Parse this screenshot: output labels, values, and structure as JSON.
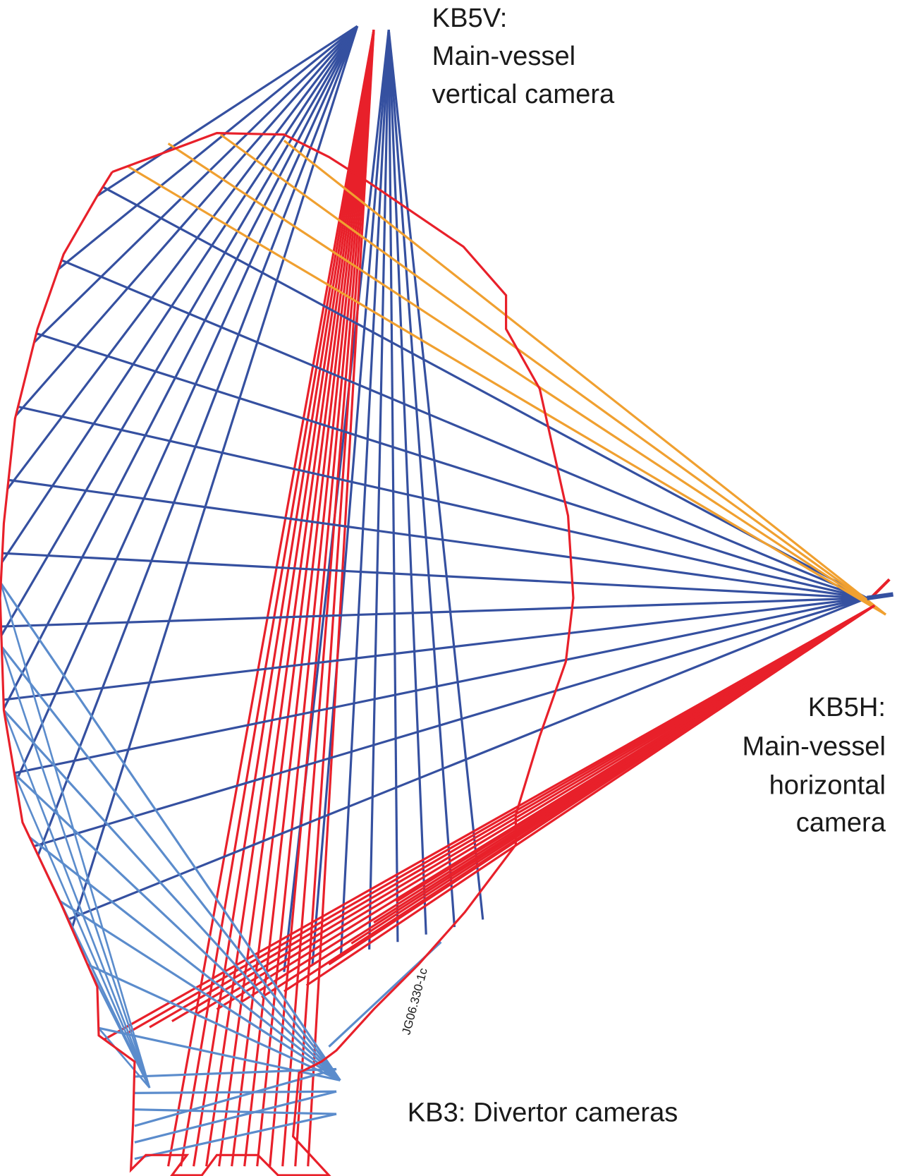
{
  "labels": {
    "kb5v": [
      "KB5V:",
      "Main-vessel",
      "vertical camera"
    ],
    "kb5h": [
      "KB5H:",
      "Main-vessel",
      "horizontal",
      "camera"
    ],
    "kb3": "KB3: Divertor cameras",
    "ref": "JG06.330-1c"
  }
}
